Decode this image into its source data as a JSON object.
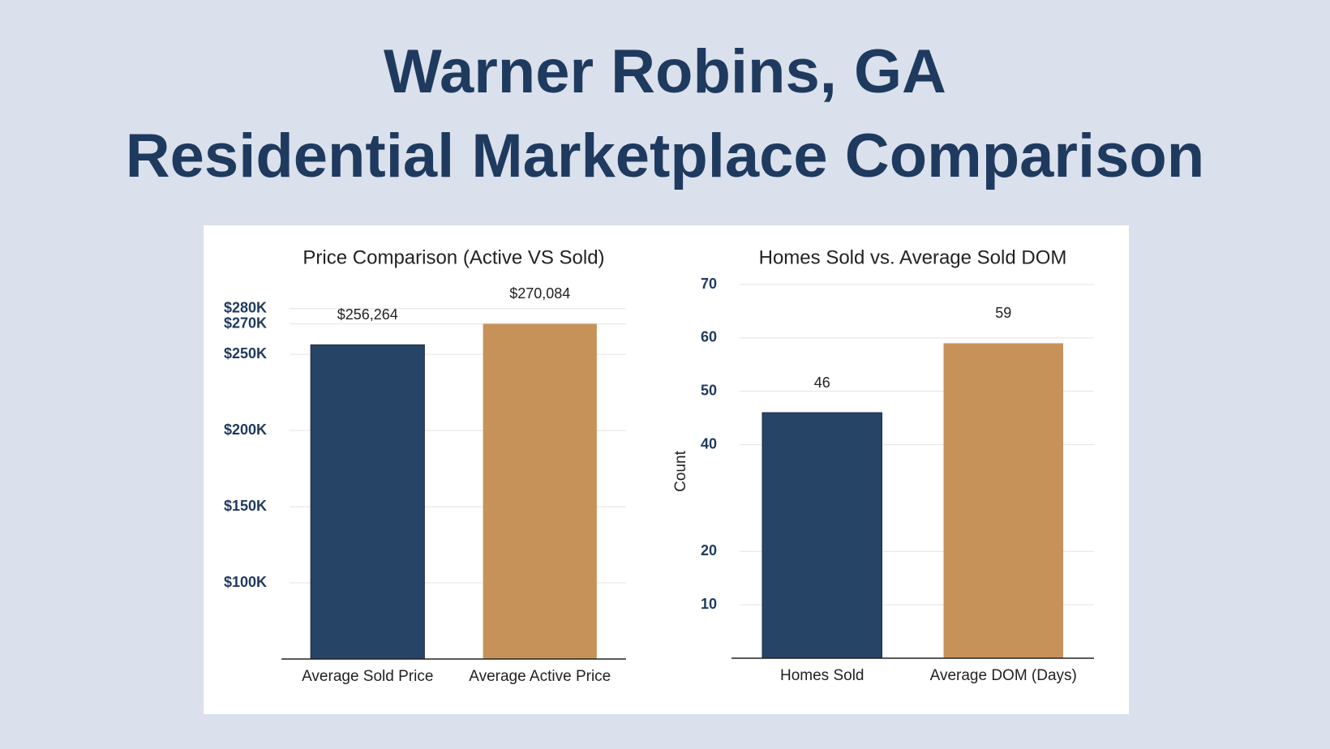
{
  "header": {
    "title": [
      "Warner Robins, GA",
      "Residential Marketplace Comparison"
    ]
  },
  "chart_data": [
    {
      "type": "bar",
      "title": "Price Comparison (Active VS Sold)",
      "categories": [
        "Average Sold Price",
        "Average Active Price"
      ],
      "values": [
        256264,
        270084
      ],
      "value_labels": [
        "$256,264",
        "$270,084"
      ],
      "colors": [
        "#264466",
        "#c69259"
      ],
      "ylim": [
        50000,
        290000
      ],
      "yticks": [
        {
          "value": 100000,
          "label": "$100K"
        },
        {
          "value": 150000,
          "label": "$150K"
        },
        {
          "value": 200000,
          "label": "$200K"
        },
        {
          "value": 250000,
          "label": "$250K"
        },
        {
          "value": 270000,
          "label": "$270K"
        },
        {
          "value": 280000,
          "label": "$280K"
        }
      ],
      "grid": true
    },
    {
      "type": "bar",
      "title": "Homes Sold vs. Average Sold DOM",
      "ylabel": "Count",
      "categories": [
        "Homes Sold",
        "Average DOM (Days)"
      ],
      "values": [
        46,
        59
      ],
      "colors": [
        "#264466",
        "#c69259"
      ],
      "ylim": [
        0,
        70
      ],
      "yticks": [
        10,
        20,
        40,
        50,
        60,
        70
      ],
      "grid": true
    }
  ]
}
